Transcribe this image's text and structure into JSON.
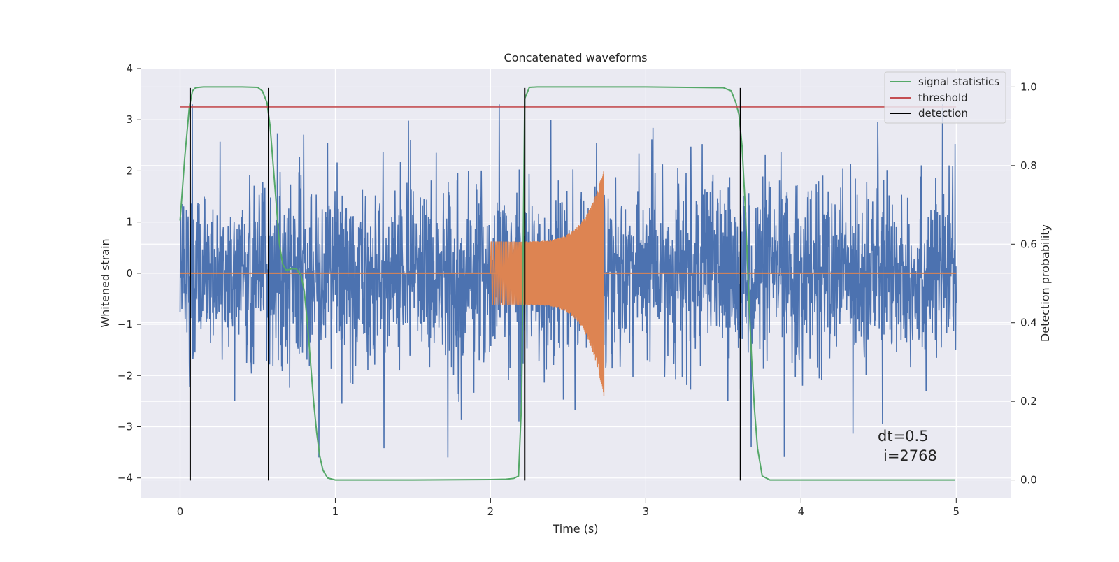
{
  "chart_data": {
    "type": "line",
    "title": "Concatenated waveforms",
    "xlabel": "Time (s)",
    "ylabel_left": "Whitened strain",
    "ylabel_right": "Detection probability",
    "xlim": [
      -0.25,
      5.35
    ],
    "ylim_left": [
      -4.4,
      4.0
    ],
    "ylim_right": [
      -0.047,
      1.047
    ],
    "x_ticks": [
      0,
      1,
      2,
      3,
      4,
      5
    ],
    "x_tick_labels": [
      "0",
      "1",
      "2",
      "3",
      "4",
      "5"
    ],
    "y_left_ticks": [
      -4,
      -3,
      -2,
      -1,
      0,
      1,
      2,
      3,
      4
    ],
    "y_left_tick_labels": [
      "−4",
      "−3",
      "−2",
      "−1",
      "0",
      "1",
      "2",
      "3",
      "4"
    ],
    "y_right_ticks": [
      0.0,
      0.2,
      0.4,
      0.6,
      0.8,
      1.0
    ],
    "y_right_tick_labels": [
      "0.0",
      "0.2",
      "0.4",
      "0.6",
      "0.8",
      "1.0"
    ],
    "grid": true,
    "legend_placement": "top-right",
    "annotation": [
      "dt=0.5",
      "i=2768"
    ],
    "noise": {
      "x_range": [
        0,
        5
      ],
      "typical_amplitude": 1.2,
      "peak_max": 3.3,
      "peak_min": -3.6
    },
    "chirp": {
      "x_range": [
        2.0,
        2.73
      ],
      "start_envelope": 0.62,
      "peak_positive": 2.05,
      "peak_negative": -2.45,
      "baseline": 0
    },
    "series": [
      {
        "name": "signal statistics",
        "axis": "right",
        "x": [
          0,
          0.03,
          0.06,
          0.08,
          0.1,
          0.12,
          0.15,
          0.2,
          0.3,
          0.4,
          0.5,
          0.53,
          0.56,
          0.58,
          0.6,
          0.62,
          0.64,
          0.66,
          0.68,
          0.7,
          0.72,
          0.75,
          0.78,
          0.8,
          0.82,
          0.84,
          0.86,
          0.88,
          0.9,
          0.92,
          0.95,
          1.0,
          1.5,
          2.0,
          2.1,
          2.15,
          2.18,
          2.2,
          2.22,
          2.25,
          2.3,
          2.5,
          3.0,
          3.5,
          3.55,
          3.58,
          3.6,
          3.62,
          3.64,
          3.66,
          3.68,
          3.7,
          3.72,
          3.75,
          3.8,
          4.0,
          4.5,
          4.99
        ],
        "y": [
          0.66,
          0.82,
          0.95,
          0.99,
          0.998,
          0.999,
          1.0,
          1.0,
          1.0,
          1.0,
          0.999,
          0.99,
          0.96,
          0.9,
          0.8,
          0.7,
          0.6,
          0.55,
          0.535,
          0.535,
          0.538,
          0.537,
          0.52,
          0.48,
          0.4,
          0.3,
          0.2,
          0.12,
          0.06,
          0.025,
          0.005,
          0.0,
          0.0,
          0.001,
          0.002,
          0.004,
          0.01,
          0.2,
          0.97,
          0.999,
          1.0,
          1.0,
          1.0,
          0.998,
          0.99,
          0.96,
          0.93,
          0.85,
          0.7,
          0.5,
          0.32,
          0.18,
          0.08,
          0.01,
          0.0,
          0.0,
          0.0,
          0.0
        ],
        "color": "#55a868"
      },
      {
        "name": "threshold",
        "axis": "left",
        "x": [
          0,
          5
        ],
        "y": [
          3.25,
          3.25
        ],
        "color": "#c44e52"
      },
      {
        "name": "detection",
        "axis": "left",
        "type": "vlines",
        "x": [
          0.065,
          0.57,
          2.22,
          3.61
        ],
        "ymin": -4.05,
        "ymax": 3.62,
        "color": "#000000"
      }
    ],
    "colors": {
      "noise": "#4c72b0",
      "chirp": "#dd8452",
      "signal_statistics": "#55a868",
      "threshold": "#c44e52",
      "detection": "#000000",
      "axes_background": "#eaeaf2",
      "grid": "#ffffff"
    }
  }
}
